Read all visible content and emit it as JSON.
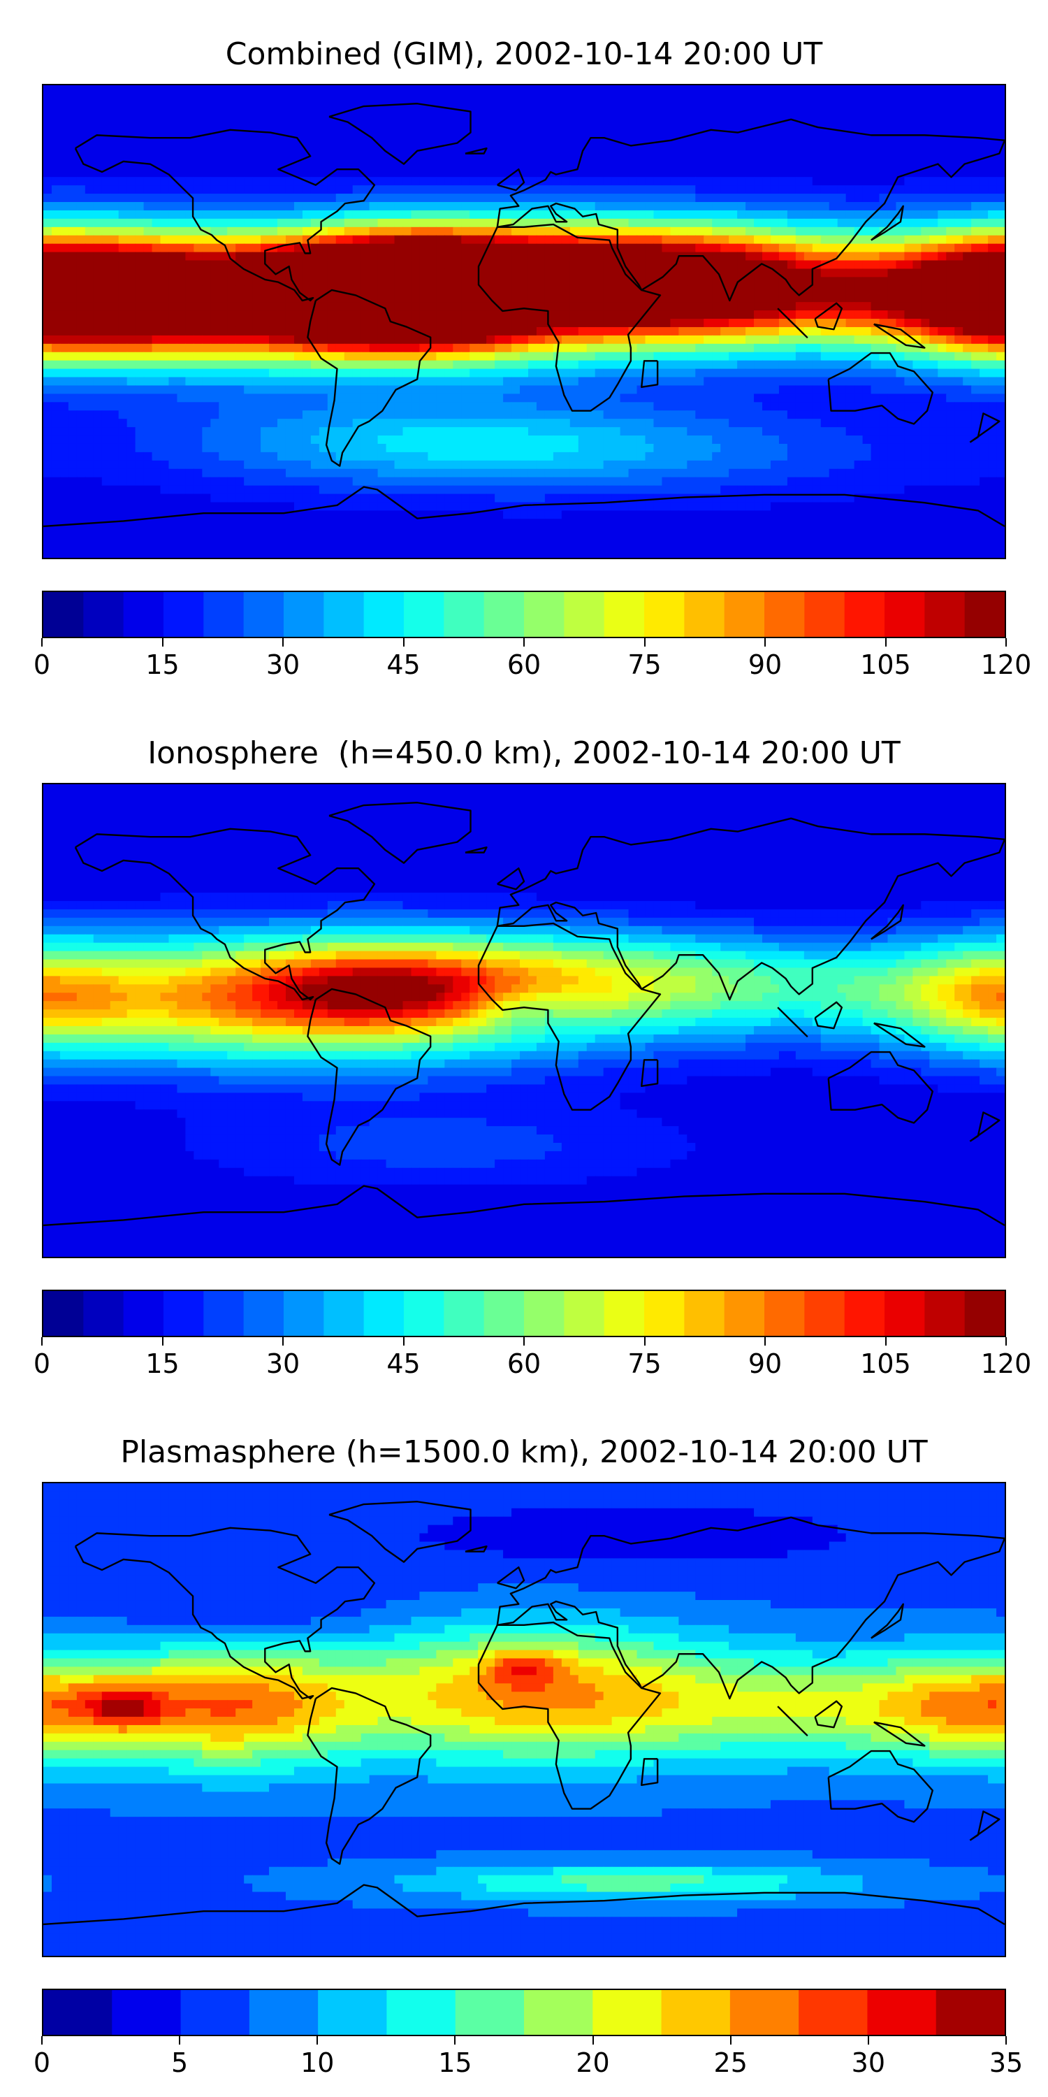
{
  "chart_data": [
    {
      "type": "heatmap",
      "title": "Combined (GIM), 2002-10-14 20:00 UT",
      "colorbar": {
        "min": 0,
        "max": 120,
        "step": 5,
        "ticks": [
          0,
          15,
          30,
          45,
          60,
          75,
          90,
          105,
          120
        ]
      },
      "colormap": "jet",
      "grid": false,
      "features": [
        {
          "lon": -75,
          "lat": 8,
          "sx": 95,
          "sy": 16,
          "value": 120
        },
        {
          "lon": -45,
          "lat": 12,
          "sx": 35,
          "sy": 14,
          "value": 100
        },
        {
          "lon": 20,
          "lat": 20,
          "sx": 70,
          "sy": 14,
          "value": 50
        },
        {
          "lon": 60,
          "lat": 15,
          "sx": 45,
          "sy": 14,
          "value": 45
        },
        {
          "lon": 110,
          "lat": 10,
          "sx": 55,
          "sy": 15,
          "value": 45
        },
        {
          "lon": 175,
          "lat": 12,
          "sx": 25,
          "sy": 16,
          "value": 55
        },
        {
          "lon": -150,
          "lat": 12,
          "sx": 30,
          "sy": 16,
          "value": 55
        },
        {
          "lon": 5,
          "lat": 5,
          "sx": 14,
          "sy": 6,
          "value": -20
        },
        {
          "lon": -40,
          "lat": -45,
          "sx": 70,
          "sy": 12,
          "value": 20
        },
        {
          "lon": 30,
          "lat": -50,
          "sx": 80,
          "sy": 12,
          "value": 15
        }
      ],
      "base_value": 12
    },
    {
      "type": "heatmap",
      "title": "Ionosphere  (h=450.0 km), 2002-10-14 20:00 UT",
      "colorbar": {
        "min": 0,
        "max": 120,
        "step": 5,
        "ticks": [
          0,
          15,
          30,
          45,
          60,
          75,
          90,
          105,
          120
        ]
      },
      "colormap": "jet",
      "grid": false,
      "features": [
        {
          "lon": -80,
          "lat": 8,
          "sx": 80,
          "sy": 17,
          "value": 80
        },
        {
          "lon": -55,
          "lat": 12,
          "sx": 30,
          "sy": 10,
          "value": 25
        },
        {
          "lon": 15,
          "lat": 18,
          "sx": 70,
          "sy": 12,
          "value": 30
        },
        {
          "lon": 110,
          "lat": 10,
          "sx": 60,
          "sy": 14,
          "value": 25
        },
        {
          "lon": 178,
          "lat": 10,
          "sx": 25,
          "sy": 15,
          "value": 30
        },
        {
          "lon": 0,
          "lat": 5,
          "sx": 14,
          "sy": 6,
          "value": -15
        },
        {
          "lon": -30,
          "lat": -48,
          "sx": 70,
          "sy": 12,
          "value": 12
        }
      ],
      "base_value": 10
    },
    {
      "type": "heatmap",
      "title": "Plasmasphere (h=1500.0 km), 2002-10-14 20:00 UT",
      "colorbar": {
        "min": 0,
        "max": 35,
        "step": 2.5,
        "ticks": [
          0,
          5,
          10,
          15,
          20,
          25,
          30,
          35
        ]
      },
      "colormap": "jet",
      "grid": false,
      "features": [
        {
          "lon": -110,
          "lat": 5,
          "sx": 35,
          "sy": 16,
          "value": 18
        },
        {
          "lon": -150,
          "lat": 5,
          "sx": 10,
          "sy": 5,
          "value": 10
        },
        {
          "lon": 0,
          "lat": 10,
          "sx": 50,
          "sy": 18,
          "value": 17
        },
        {
          "lon": 0,
          "lat": 20,
          "sx": 10,
          "sy": 5,
          "value": 8
        },
        {
          "lon": 115,
          "lat": 5,
          "sx": 60,
          "sy": 14,
          "value": 11
        },
        {
          "lon": 175,
          "lat": 5,
          "sx": 30,
          "sy": 14,
          "value": 12
        },
        {
          "lon": 40,
          "lat": -62,
          "sx": 60,
          "sy": 5,
          "value": 9
        },
        {
          "lon": -100,
          "lat": 40,
          "sx": 40,
          "sy": 10,
          "value": -3
        },
        {
          "lon": 40,
          "lat": 70,
          "sx": 90,
          "sy": 12,
          "value": -3
        }
      ],
      "base_value": 7
    }
  ]
}
